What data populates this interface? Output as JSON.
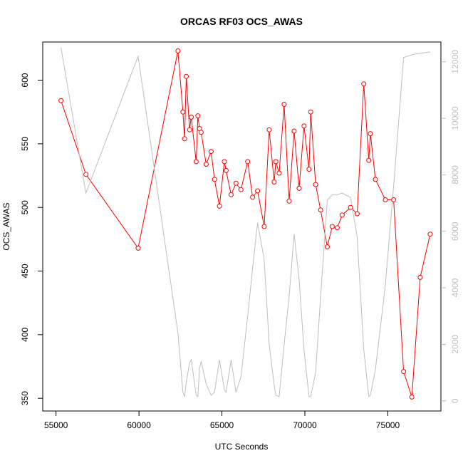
{
  "chart_data": {
    "type": "line",
    "title": "ORCAS RF03 OCS_AWAS",
    "xlabel": "UTC Seconds",
    "ylabel": "OCS_AWAS",
    "xlim": [
      54200,
      78200
    ],
    "ylim": [
      340,
      630
    ],
    "y2lim": [
      -360,
      12700
    ],
    "x_ticks": [
      55000,
      60000,
      65000,
      70000,
      75000
    ],
    "y_ticks": [
      350,
      400,
      450,
      500,
      550,
      600
    ],
    "y2_ticks": [
      0,
      2000,
      4000,
      6000,
      8000,
      10000,
      12000
    ],
    "grid": false,
    "colors": {
      "primary": "#ff0000",
      "secondary": "#bebebe",
      "axis": "#000000"
    },
    "series": [
      {
        "axis": "left",
        "style": "line+points",
        "color": "#ff0000",
        "x": [
          55300,
          56800,
          59950,
          62350,
          62650,
          62750,
          62850,
          63050,
          63150,
          63450,
          63550,
          63650,
          63750,
          64050,
          64350,
          64550,
          64850,
          65150,
          65250,
          65550,
          65850,
          66150,
          66550,
          66850,
          67150,
          67550,
          67850,
          68150,
          68250,
          68450,
          68750,
          69050,
          69350,
          69650,
          69950,
          70250,
          70350,
          70650,
          70950,
          71350,
          71650,
          71950,
          72250,
          72750,
          73150,
          73550,
          73850,
          73950,
          74250,
          74850,
          75350,
          75950,
          76450,
          76950,
          77550
        ],
        "y": [
          584,
          526,
          468,
          623,
          575,
          554,
          603,
          561,
          571,
          536,
          572,
          562,
          559,
          534,
          544,
          522,
          501,
          536,
          529,
          510,
          519,
          514,
          536,
          508,
          513,
          485,
          561,
          520,
          536,
          527,
          581,
          505,
          560,
          515,
          564,
          530,
          575,
          518,
          498,
          469,
          485,
          484,
          494,
          500,
          495,
          597,
          537,
          558,
          522,
          506,
          506,
          371,
          351,
          445,
          479
        ]
      },
      {
        "axis": "right",
        "style": "line",
        "color": "#bebebe",
        "x": [
          55300,
          56800,
          59950,
          62350,
          62650,
          62750,
          62850,
          63050,
          63150,
          63450,
          63550,
          63650,
          63750,
          64050,
          64350,
          64550,
          64850,
          65150,
          65250,
          65550,
          65850,
          66150,
          66550,
          66850,
          67150,
          67550,
          67850,
          68150,
          68250,
          68450,
          68750,
          69050,
          69350,
          69650,
          69950,
          70250,
          70350,
          70650,
          70950,
          71350,
          71650,
          71950,
          72250,
          72750,
          73150,
          73550,
          73850,
          73950,
          74250,
          74850,
          75350,
          75950,
          76450,
          76950,
          77550
        ],
        "y": [
          12500,
          7350,
          12200,
          2400,
          300,
          150,
          650,
          1350,
          1450,
          200,
          150,
          1150,
          1400,
          600,
          200,
          300,
          1450,
          400,
          300,
          1450,
          300,
          850,
          3000,
          4700,
          6300,
          5000,
          2000,
          550,
          200,
          150,
          2000,
          3700,
          5900,
          4300,
          1800,
          150,
          150,
          1000,
          3700,
          7100,
          7300,
          7300,
          7350,
          7200,
          5800,
          1800,
          150,
          200,
          1100,
          4100,
          7600,
          12150,
          12250,
          12300,
          12350
        ]
      }
    ]
  }
}
